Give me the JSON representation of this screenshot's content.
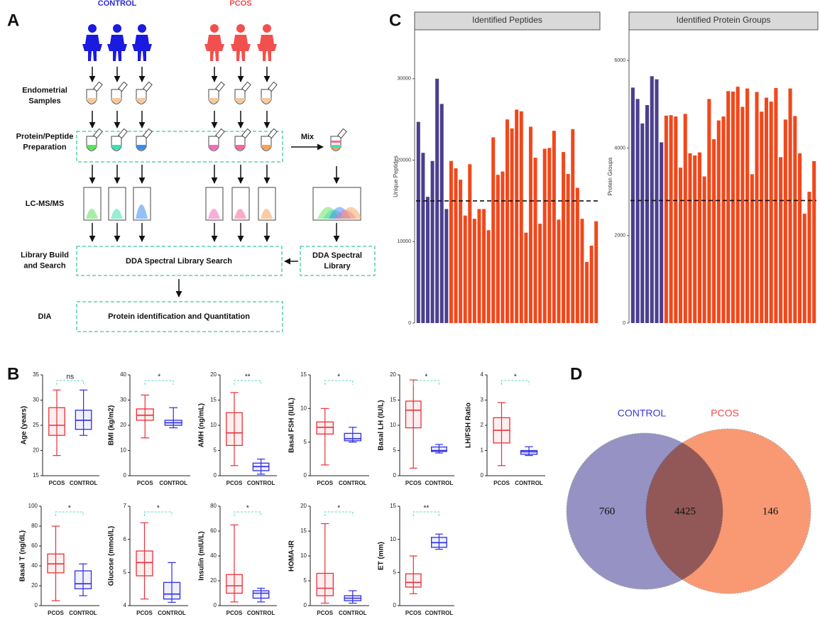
{
  "panel_labels": [
    "A",
    "B",
    "C",
    "D"
  ],
  "diagram": {
    "groups": [
      "CONTROL",
      "PCOS"
    ],
    "row_labels": [
      [
        "Endometrial",
        "Samples"
      ],
      [
        "Protein/Peptide",
        "Preparation"
      ],
      [
        "LC-MS/MS"
      ],
      [
        "Library Build",
        "and Search"
      ],
      [
        "DIA"
      ]
    ],
    "mix": "Mix",
    "search_box": "DDA Spectral Library Search",
    "library_box": [
      "DDA Spectral",
      "Library"
    ],
    "dia_box": "Protein identification and Quantitation"
  },
  "chart_data": [
    {
      "type": "bar",
      "title": "Identified Peptides",
      "ylabel": "Unique Peptides",
      "ylim": [
        0,
        36000
      ],
      "yticks": [
        0,
        10000,
        20000,
        30000
      ],
      "threshold": 15000,
      "series": [
        {
          "color": "#4b3f8f",
          "values": [
            24700,
            20900,
            15500,
            19900,
            30000,
            26900,
            14000
          ]
        },
        {
          "color": "#f0481c",
          "values": [
            19900,
            19000,
            17600,
            13200,
            19500,
            12800,
            14000,
            14000,
            11400,
            22800,
            18200,
            18600,
            25000,
            23900,
            26200,
            26000,
            11100,
            24100,
            20300,
            12200,
            21400,
            21500,
            23600,
            12700,
            21000,
            18300,
            23800,
            16600,
            12800,
            7500,
            9500,
            12500
          ]
        }
      ]
    },
    {
      "type": "bar",
      "title": "Identified Protein Groups",
      "ylabel": "Protein Groups",
      "ylim": [
        0,
        6700
      ],
      "yticks": [
        0,
        2000,
        4000,
        6000
      ],
      "threshold": 2800,
      "series": [
        {
          "color": "#4b3f8f",
          "values": [
            5380,
            5120,
            4560,
            4980,
            5640,
            5570,
            4130
          ]
        },
        {
          "color": "#f0481c",
          "values": [
            4740,
            4750,
            4720,
            3550,
            4780,
            3880,
            3830,
            3900,
            3350,
            5120,
            4200,
            4630,
            4720,
            5300,
            5290,
            5400,
            4940,
            5360,
            3400,
            5280,
            4830,
            5150,
            5060,
            5370,
            3790,
            4650,
            5360,
            4730,
            3880,
            2500,
            3000,
            3700
          ]
        }
      ]
    },
    {
      "type": "box",
      "ylabel": "Age (years)",
      "ylim": [
        15,
        35
      ],
      "yticks": [
        15,
        20,
        25,
        30,
        35
      ],
      "annotation": "ns",
      "categories": [
        "PCOS",
        "CONTROL"
      ],
      "colors": [
        "#e8303a",
        "#2e2ee0"
      ],
      "boxes": [
        [
          19,
          23,
          25,
          28.5,
          32
        ],
        [
          23,
          24.2,
          26,
          28,
          32
        ]
      ]
    },
    {
      "type": "box",
      "ylabel": "BMI (kg/m2)",
      "ylim": [
        0,
        40
      ],
      "yticks": [
        0,
        10,
        20,
        30,
        40
      ],
      "annotation": "*",
      "categories": [
        "PCOS",
        "CONTROL"
      ],
      "colors": [
        "#e8303a",
        "#2e2ee0"
      ],
      "boxes": [
        [
          15,
          22,
          24,
          26.5,
          32
        ],
        [
          19,
          20,
          21,
          22,
          27
        ]
      ]
    },
    {
      "type": "box",
      "ylabel": "AMH (ng/mL)",
      "ylim": [
        0,
        20
      ],
      "yticks": [
        0,
        5,
        10,
        15,
        20
      ],
      "annotation": "**",
      "categories": [
        "PCOS",
        "CONTROL"
      ],
      "colors": [
        "#e8303a",
        "#2e2ee0"
      ],
      "boxes": [
        [
          2,
          6,
          8.5,
          12.5,
          16.5
        ],
        [
          0.3,
          1,
          1.8,
          2.5,
          3.3
        ]
      ]
    },
    {
      "type": "box",
      "ylabel": "Basal FSH (IU/L)",
      "ylim": [
        0,
        15
      ],
      "yticks": [
        0,
        5,
        10,
        15
      ],
      "annotation": "*",
      "categories": [
        "PCOS",
        "CONTROL"
      ],
      "colors": [
        "#e8303a",
        "#2e2ee0"
      ],
      "boxes": [
        [
          1.6,
          6.2,
          7.2,
          8,
          10
        ],
        [
          5,
          5.2,
          5.5,
          6.3,
          7.2
        ]
      ]
    },
    {
      "type": "box",
      "ylabel": "Basal LH (IU/L)",
      "ylim": [
        0,
        20
      ],
      "yticks": [
        0,
        5,
        10,
        15,
        20
      ],
      "annotation": "*",
      "categories": [
        "PCOS",
        "CONTROL"
      ],
      "colors": [
        "#e8303a",
        "#2e2ee0"
      ],
      "boxes": [
        [
          1.5,
          9.5,
          13,
          14.8,
          19
        ],
        [
          4.5,
          4.8,
          5,
          5.7,
          6.2
        ]
      ]
    },
    {
      "type": "box",
      "ylabel": "LH/FSH Ratio",
      "ylim": [
        0,
        4
      ],
      "yticks": [
        0,
        1,
        2,
        3,
        4
      ],
      "annotation": "*",
      "categories": [
        "PCOS",
        "CONTROL"
      ],
      "colors": [
        "#e8303a",
        "#2e2ee0"
      ],
      "boxes": [
        [
          0.4,
          1.3,
          1.8,
          2.3,
          2.9
        ],
        [
          0.8,
          0.85,
          0.95,
          1,
          1.15
        ]
      ]
    },
    {
      "type": "box",
      "ylabel": "Basal T (ng/dL)",
      "ylim": [
        0,
        100
      ],
      "yticks": [
        0,
        20,
        40,
        60,
        80,
        100
      ],
      "annotation": "*",
      "categories": [
        "PCOS",
        "CONTROL"
      ],
      "colors": [
        "#e8303a",
        "#2e2ee0"
      ],
      "boxes": [
        [
          5,
          33,
          42,
          52,
          80
        ],
        [
          10,
          17,
          22,
          35,
          42
        ]
      ]
    },
    {
      "type": "box",
      "ylabel": "Glucose (mmol/L)",
      "ylim": [
        4,
        7
      ],
      "yticks": [
        4,
        5,
        6,
        7
      ],
      "annotation": "*",
      "categories": [
        "PCOS",
        "CONTROL"
      ],
      "colors": [
        "#e8303a",
        "#2e2ee0"
      ],
      "boxes": [
        [
          4.2,
          4.9,
          5.3,
          5.65,
          6.5
        ],
        [
          4.1,
          4.2,
          4.35,
          4.7,
          5.3
        ]
      ]
    },
    {
      "type": "box",
      "ylabel": "Insulin (mIU/L)",
      "ylim": [
        0,
        80
      ],
      "yticks": [
        0,
        20,
        40,
        60,
        80
      ],
      "annotation": "*",
      "categories": [
        "PCOS",
        "CONTROL"
      ],
      "colors": [
        "#e8303a",
        "#2e2ee0"
      ],
      "boxes": [
        [
          3,
          10,
          16,
          25,
          65
        ],
        [
          3,
          6,
          10,
          12,
          14
        ]
      ]
    },
    {
      "type": "box",
      "ylabel": "HOMA-IR",
      "ylim": [
        0,
        20
      ],
      "yticks": [
        0,
        5,
        10,
        15,
        20
      ],
      "annotation": "*",
      "categories": [
        "PCOS",
        "CONTROL"
      ],
      "colors": [
        "#e8303a",
        "#2e2ee0"
      ],
      "boxes": [
        [
          0.5,
          2,
          3.5,
          6.5,
          16.5
        ],
        [
          0.5,
          1,
          1.5,
          2,
          3
        ]
      ]
    },
    {
      "type": "box",
      "ylabel": "ET (mm)",
      "ylim": [
        0,
        15
      ],
      "yticks": [
        0,
        5,
        10,
        15
      ],
      "annotation": "**",
      "categories": [
        "PCOS",
        "CONTROL"
      ],
      "colors": [
        "#e8303a",
        "#2e2ee0"
      ],
      "boxes": [
        [
          1.8,
          2.8,
          3.5,
          4.8,
          7.5
        ],
        [
          8.5,
          8.8,
          9.5,
          10.3,
          10.8
        ]
      ]
    },
    {
      "type": "venn",
      "sets": [
        {
          "name": "CONTROL",
          "color": "#8b86bd",
          "label_color": "#3a3ad8",
          "value": 760
        },
        {
          "name": "PCOS",
          "color": "#f7875a",
          "label_color": "#ef4a4a",
          "value": 146
        }
      ],
      "intersection": 4425
    }
  ]
}
